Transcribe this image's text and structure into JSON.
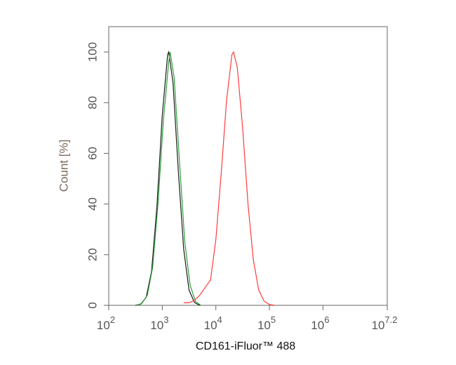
{
  "chart_data": {
    "type": "line",
    "x_label": "CD161-iFluor™ 488",
    "y_label": "Count [%]",
    "log_x": true,
    "xlim": [
      100,
      15848932
    ],
    "xticks": [
      {
        "value": 100,
        "label": "10",
        "exponent": "2"
      },
      {
        "value": 1000,
        "label": "10",
        "exponent": "3"
      },
      {
        "value": 10000,
        "label": "10",
        "exponent": "4"
      },
      {
        "value": 100000,
        "label": "10",
        "exponent": "5"
      },
      {
        "value": 1000000,
        "label": "10",
        "exponent": "6"
      },
      {
        "value": 15848932,
        "label": "10",
        "exponent": "7.2"
      }
    ],
    "ylim": [
      0,
      110
    ],
    "yticks": [
      0,
      20,
      40,
      60,
      80,
      100
    ],
    "series": [
      {
        "color": "#1a1a1a",
        "x": [
          316,
          398,
          501,
          631,
          794,
          1000,
          1259,
          1318,
          1585,
          1995,
          2512,
          3162,
          3981,
          5012
        ],
        "values": [
          0,
          0.5,
          3.2,
          13.5,
          39,
          75,
          99,
          100,
          88,
          53,
          22,
          6,
          1.1,
          0
        ]
      },
      {
        "color": "#2e9e3a",
        "x": [
          331,
          417,
          525,
          661,
          832,
          1047,
          1318,
          1400,
          1660,
          2089,
          2630,
          3311,
          4169,
          5248
        ],
        "values": [
          0,
          0.8,
          4,
          15,
          40,
          73,
          96,
          100,
          90,
          57,
          25,
          8,
          1.5,
          0
        ]
      },
      {
        "color": "#ff3b3b",
        "x": [
          2512,
          3162,
          3981,
          5012,
          6310,
          7943,
          10000,
          12589,
          15849,
          19953,
          21380,
          25119,
          31623,
          39811,
          50119,
          63096,
          79433,
          100000,
          125893
        ],
        "values": [
          1,
          1,
          2,
          4,
          7,
          10,
          26,
          52,
          81,
          99,
          100,
          94,
          70,
          40,
          18,
          6,
          1.7,
          0.3,
          0
        ]
      }
    ]
  }
}
